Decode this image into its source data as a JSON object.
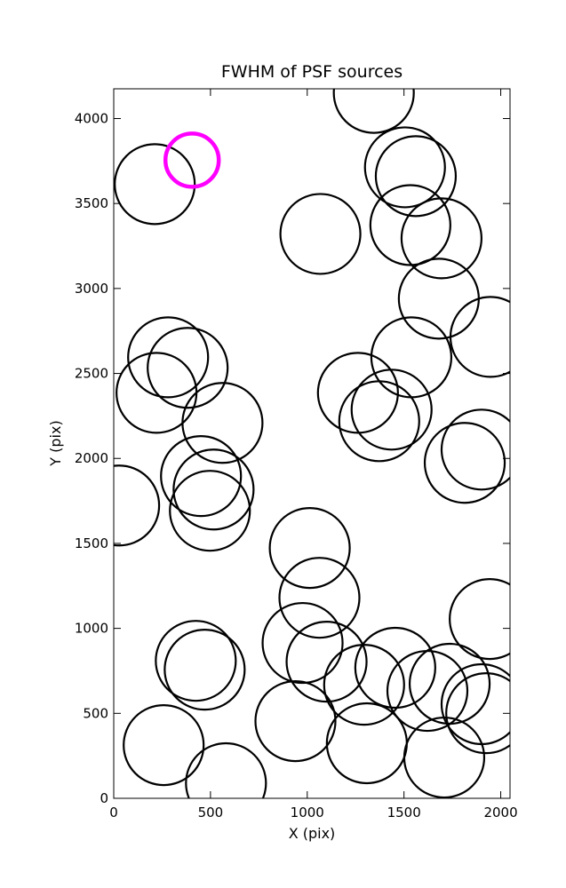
{
  "chart_data": {
    "type": "scatter",
    "title": "FWHM of PSF sources",
    "xlabel": "X (pix)",
    "ylabel": "Y (pix)",
    "xlim": [
      0,
      2048
    ],
    "ylim": [
      0,
      4175
    ],
    "xticks": [
      0,
      500,
      1000,
      1500,
      2000
    ],
    "yticks": [
      0,
      500,
      1000,
      1500,
      2000,
      2500,
      3000,
      3500,
      4000
    ],
    "grid": false,
    "series": [
      {
        "color": "#000000",
        "x": [
          212,
          1344,
          1505,
          1561,
          1068,
          1533,
          1694,
          1680,
          1947,
          281,
          382,
          221,
          1538,
          1262,
          1436,
          1372,
          562,
          1901,
          1814,
          28,
          451,
          516,
          497,
          1013,
          1063,
          1943,
          976,
          1100,
          424,
          470,
          1455,
          1294,
          1621,
          1736,
          1901,
          1925,
          939,
          1308,
          258,
          1708,
          580
        ],
        "y": [
          3614,
          4151,
          3713,
          3661,
          3321,
          3373,
          3295,
          2940,
          2715,
          2595,
          2533,
          2386,
          2595,
          2386,
          2287,
          2219,
          2209,
          2052,
          1974,
          1723,
          1896,
          1817,
          1692,
          1473,
          1180,
          1055,
          914,
          804,
          809,
          757,
          768,
          668,
          632,
          674,
          554,
          501,
          454,
          324,
          313,
          240,
          89
        ]
      },
      {
        "color": "#ff00ff",
        "x": [
          405
        ],
        "y": [
          3755
        ]
      }
    ]
  }
}
